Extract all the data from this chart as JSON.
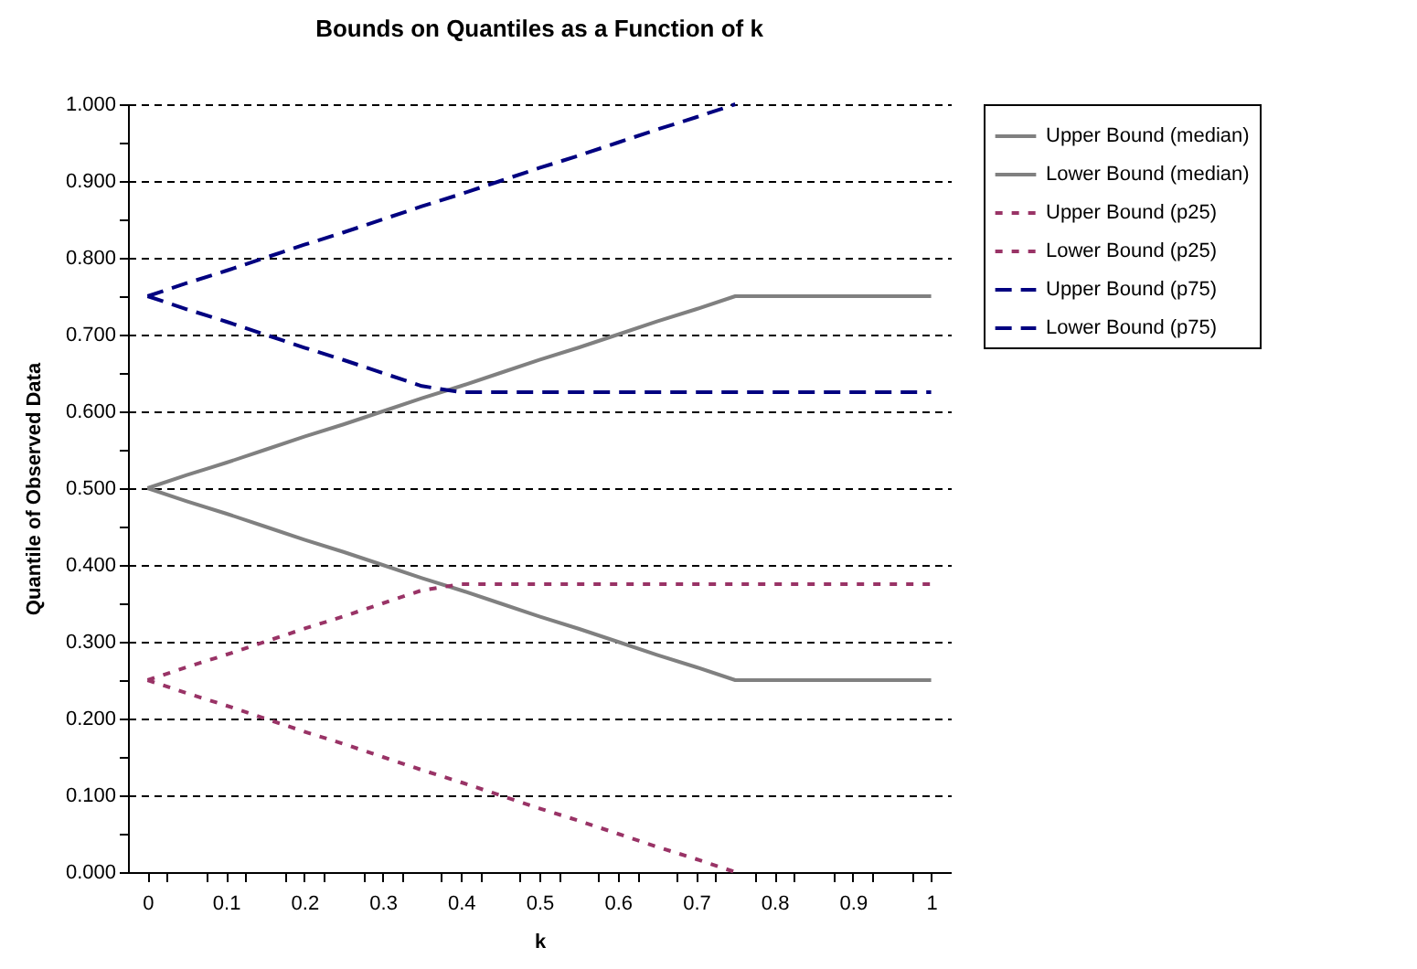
{
  "chart_data": {
    "type": "line",
    "title": "Bounds on Quantiles as a Function of k",
    "xlabel": "k",
    "ylabel": "Quantile of Observed Data",
    "x": [
      0,
      0.05,
      0.1,
      0.15,
      0.2,
      0.25,
      0.3,
      0.35,
      0.4,
      0.45,
      0.5,
      0.55,
      0.6,
      0.65,
      0.7,
      0.75,
      0.8,
      0.85,
      0.9,
      0.95,
      1
    ],
    "series": [
      {
        "name": "Upper Bound (median)",
        "color": "#808080",
        "line_style": "solid",
        "values": [
          0.5,
          0.517,
          0.533,
          0.55,
          0.567,
          0.583,
          0.6,
          0.617,
          0.633,
          0.65,
          0.667,
          0.683,
          0.7,
          0.717,
          0.733,
          0.75,
          0.75,
          0.75,
          0.75,
          0.75,
          0.75
        ]
      },
      {
        "name": "Lower Bound (median)",
        "color": "#808080",
        "line_style": "solid",
        "values": [
          0.5,
          0.483,
          0.467,
          0.45,
          0.433,
          0.417,
          0.4,
          0.383,
          0.367,
          0.35,
          0.333,
          0.317,
          0.3,
          0.283,
          0.267,
          0.25,
          0.25,
          0.25,
          0.25,
          0.25,
          0.25
        ]
      },
      {
        "name": "Upper Bound (p25)",
        "color": "#993366",
        "line_style": "dotted",
        "values": [
          0.25,
          0.267,
          0.283,
          0.3,
          0.317,
          0.333,
          0.35,
          0.367,
          0.375,
          0.375,
          0.375,
          0.375,
          0.375,
          0.375,
          0.375,
          0.375,
          0.375,
          0.375,
          0.375,
          0.375,
          0.375
        ]
      },
      {
        "name": "Lower Bound (p25)",
        "color": "#993366",
        "line_style": "dotted",
        "values": [
          0.25,
          0.233,
          0.217,
          0.2,
          0.183,
          0.167,
          0.15,
          0.133,
          0.117,
          0.1,
          0.083,
          0.067,
          0.05,
          0.033,
          0.017,
          0,
          null,
          null,
          null,
          null,
          null
        ]
      },
      {
        "name": "Upper Bound (p75)",
        "color": "#000080",
        "line_style": "dashed",
        "values": [
          0.75,
          0.767,
          0.783,
          0.8,
          0.817,
          0.833,
          0.85,
          0.867,
          0.883,
          0.9,
          0.917,
          0.933,
          0.95,
          0.967,
          0.983,
          1,
          null,
          null,
          null,
          null,
          null
        ]
      },
      {
        "name": "Lower Bound (p75)",
        "color": "#000080",
        "line_style": "dashed",
        "values": [
          0.75,
          0.733,
          0.717,
          0.7,
          0.683,
          0.667,
          0.65,
          0.633,
          0.625,
          0.625,
          0.625,
          0.625,
          0.625,
          0.625,
          0.625,
          0.625,
          0.625,
          0.625,
          0.625,
          0.625,
          0.625
        ]
      }
    ],
    "xlim": [
      -0.025,
      1.025
    ],
    "xticks": [
      0,
      {
        "value": 0.025,
        "label": null
      },
      0.1,
      {
        "value": 0.075,
        "label": null
      },
      {
        "value": 0.125,
        "label": null
      },
      0.2,
      {
        "value": 0.175,
        "label": null
      },
      {
        "value": 0.225,
        "label": null
      },
      0.3,
      {
        "value": 0.275,
        "label": null
      },
      {
        "value": 0.325,
        "label": null
      },
      0.4,
      {
        "value": 0.375,
        "label": null
      },
      {
        "value": 0.425,
        "label": null
      },
      0.5,
      {
        "value": 0.475,
        "label": null
      },
      {
        "value": 0.525,
        "label": null
      },
      0.6,
      {
        "value": 0.575,
        "label": null
      },
      {
        "value": 0.625,
        "label": null
      },
      0.7,
      {
        "value": 0.675,
        "label": null
      },
      {
        "value": 0.725,
        "label": null
      },
      0.8,
      {
        "value": 0.775,
        "label": null
      },
      {
        "value": 0.825,
        "label": null
      },
      0.9,
      {
        "value": 0.875,
        "label": null
      },
      {
        "value": 0.925,
        "label": null
      },
      1,
      {
        "value": 0.975,
        "label": null
      }
    ],
    "ylim": [
      0,
      1
    ],
    "yticks": [
      {
        "value": 0,
        "label": "0.000"
      },
      {
        "value": 0.05,
        "label": null
      },
      {
        "value": 0.1,
        "label": "0.100"
      },
      {
        "value": 0.15,
        "label": null
      },
      {
        "value": 0.2,
        "label": "0.200"
      },
      {
        "value": 0.25,
        "label": null
      },
      {
        "value": 0.3,
        "label": "0.300"
      },
      {
        "value": 0.35,
        "label": null
      },
      {
        "value": 0.4,
        "label": "0.400"
      },
      {
        "value": 0.45,
        "label": null
      },
      {
        "value": 0.5,
        "label": "0.500"
      },
      {
        "value": 0.55,
        "label": null
      },
      {
        "value": 0.6,
        "label": "0.600"
      },
      {
        "value": 0.65,
        "label": null
      },
      {
        "value": 0.7,
        "label": "0.700"
      },
      {
        "value": 0.75,
        "label": null
      },
      {
        "value": 0.8,
        "label": "0.800"
      },
      {
        "value": 0.85,
        "label": null
      },
      {
        "value": 0.9,
        "label": "0.900"
      },
      {
        "value": 0.95,
        "label": null
      },
      {
        "value": 1,
        "label": "1.000"
      }
    ],
    "grid": "y",
    "legend": "right"
  }
}
